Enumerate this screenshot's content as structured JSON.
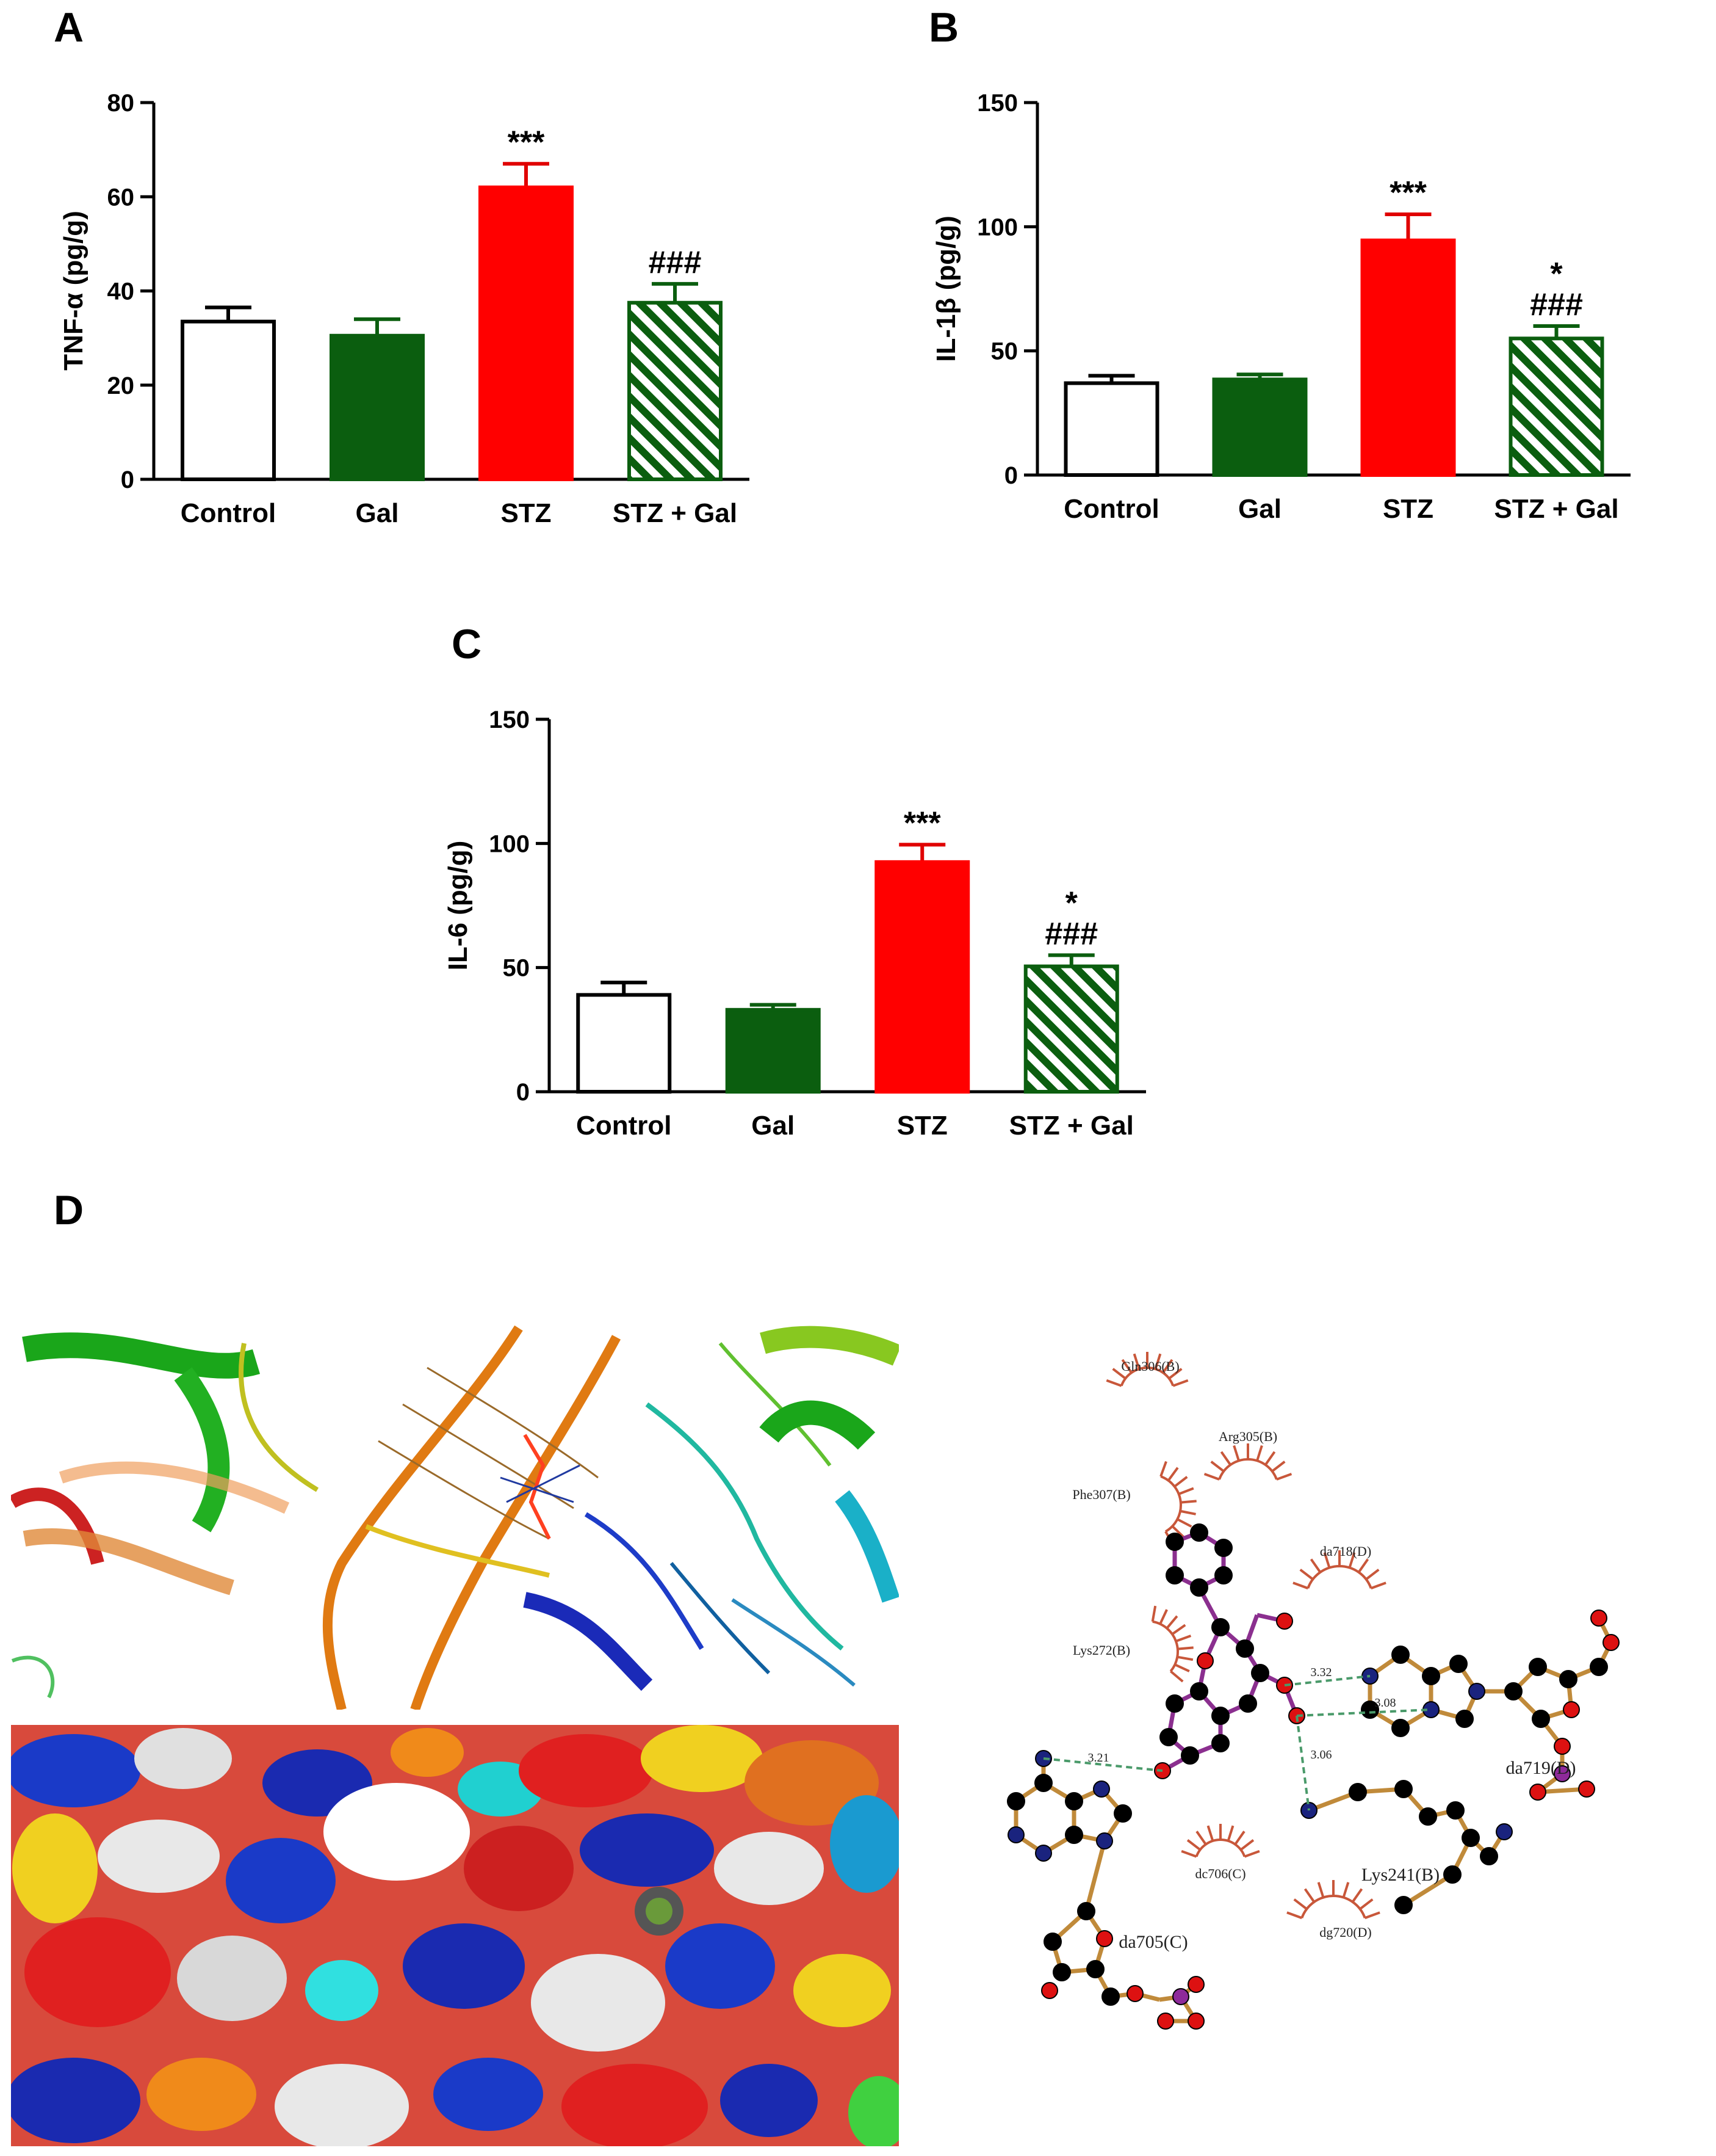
{
  "panel_labels": {
    "A": "A",
    "B": "B",
    "C": "C",
    "D": "D"
  },
  "styles": {
    "colors": {
      "Control": "#ffffff",
      "Gal": "#0b5e0f",
      "STZ": "#ff0000",
      "STZ + Gal": "#0b5e0f",
      "hatch_bg": "#ffffff",
      "axis": "#000000",
      "err_Control": "#000000",
      "err_Gal": "#0b5e0f",
      "err_STZ": "#e00000",
      "err_STZ + Gal": "#0b5e0f"
    },
    "hatched": {
      "STZ + Gal": true
    }
  },
  "chart_data": [
    {
      "panel": "A",
      "type": "bar",
      "categories": [
        "Control",
        "Gal",
        "STZ",
        "STZ + Gal"
      ],
      "values": [
        33.5,
        30.5,
        62,
        37.5
      ],
      "errors": [
        3,
        3.5,
        5,
        4
      ],
      "ylabel": "TNF-α (pg/g)",
      "ylim": [
        0,
        80
      ],
      "yticks": [
        0,
        20,
        40,
        60,
        80
      ],
      "annotations": [
        {
          "category": "STZ",
          "lines": [
            "***"
          ]
        },
        {
          "category": "STZ + Gal",
          "lines": [
            "###"
          ]
        }
      ]
    },
    {
      "panel": "B",
      "type": "bar",
      "categories": [
        "Control",
        "Gal",
        "STZ",
        "STZ + Gal"
      ],
      "values": [
        37,
        38.5,
        94.5,
        55
      ],
      "errors": [
        3,
        2,
        10.5,
        5
      ],
      "ylabel": "IL-1β (pg/g)",
      "ylim": [
        0,
        150
      ],
      "yticks": [
        0,
        50,
        100,
        150
      ],
      "annotations": [
        {
          "category": "STZ",
          "lines": [
            "***"
          ]
        },
        {
          "category": "STZ + Gal",
          "lines": [
            "*",
            "###"
          ]
        }
      ]
    },
    {
      "panel": "C",
      "type": "bar",
      "categories": [
        "Control",
        "Gal",
        "STZ",
        "STZ + Gal"
      ],
      "values": [
        39,
        33,
        92.5,
        50.5
      ],
      "errors": [
        5,
        2,
        7,
        4.5
      ],
      "ylabel": "IL-6 (pg/g)",
      "ylim": [
        0,
        150
      ],
      "yticks": [
        0,
        50,
        100,
        150
      ],
      "annotations": [
        {
          "category": "STZ",
          "lines": [
            "***"
          ]
        },
        {
          "category": "STZ + Gal",
          "lines": [
            "*",
            "###"
          ]
        }
      ]
    }
  ],
  "docking": {
    "residue_labels": {
      "gln306": "Gln306(B)",
      "arg305": "Arg305(B)",
      "phe307": "Phe307(B)",
      "da718": "da718(D)",
      "lys272": "Lys272(B)",
      "dc706": "dc706(C)",
      "dg720": "dg720(D)",
      "da719": "da719(D)",
      "lys241": "Lys241(B)",
      "da705": "da705(C)"
    },
    "distances": [
      "3.21",
      "3.32",
      "3.08",
      "3.06"
    ],
    "colors": {
      "hydrophobic_arc": "#c8573a",
      "ligand_bond": "#8b2f8f",
      "residue_bond": "#c08a3a",
      "hbond": "#4a9a6a",
      "atom_C": "#000000",
      "atom_O": "#dd1111",
      "atom_N": "#1a237e",
      "atom_P": "#8e2a9a"
    }
  }
}
